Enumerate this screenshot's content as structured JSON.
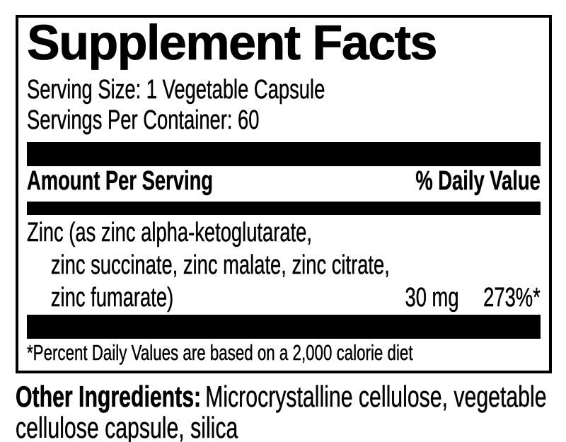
{
  "label": {
    "title": "Supplement Facts",
    "serving_size": "Serving Size: 1 Vegetable Capsule",
    "servings_per_container": "Servings Per Container: 60",
    "columns": {
      "amount_header": "Amount Per Serving",
      "daily_value_header": "% Daily Value"
    },
    "rows": [
      {
        "name_lines": [
          "Zinc (as zinc alpha-ketoglutarate,",
          "zinc succinate, zinc malate, zinc citrate,",
          "zinc fumarate)"
        ],
        "amount": "30 mg",
        "daily_value": "273%*"
      }
    ],
    "footnote": "*Percent Daily Values are based on a 2,000 calorie diet"
  },
  "other_ingredients": {
    "label": "Other Ingredients:",
    "lines": [
      "Microcrystalline cellulose, vegetable",
      "cellulose capsule, silica"
    ]
  },
  "colors": {
    "text": "#000000",
    "background": "#ffffff",
    "divider_bar": "#000000",
    "border": "#000000"
  }
}
